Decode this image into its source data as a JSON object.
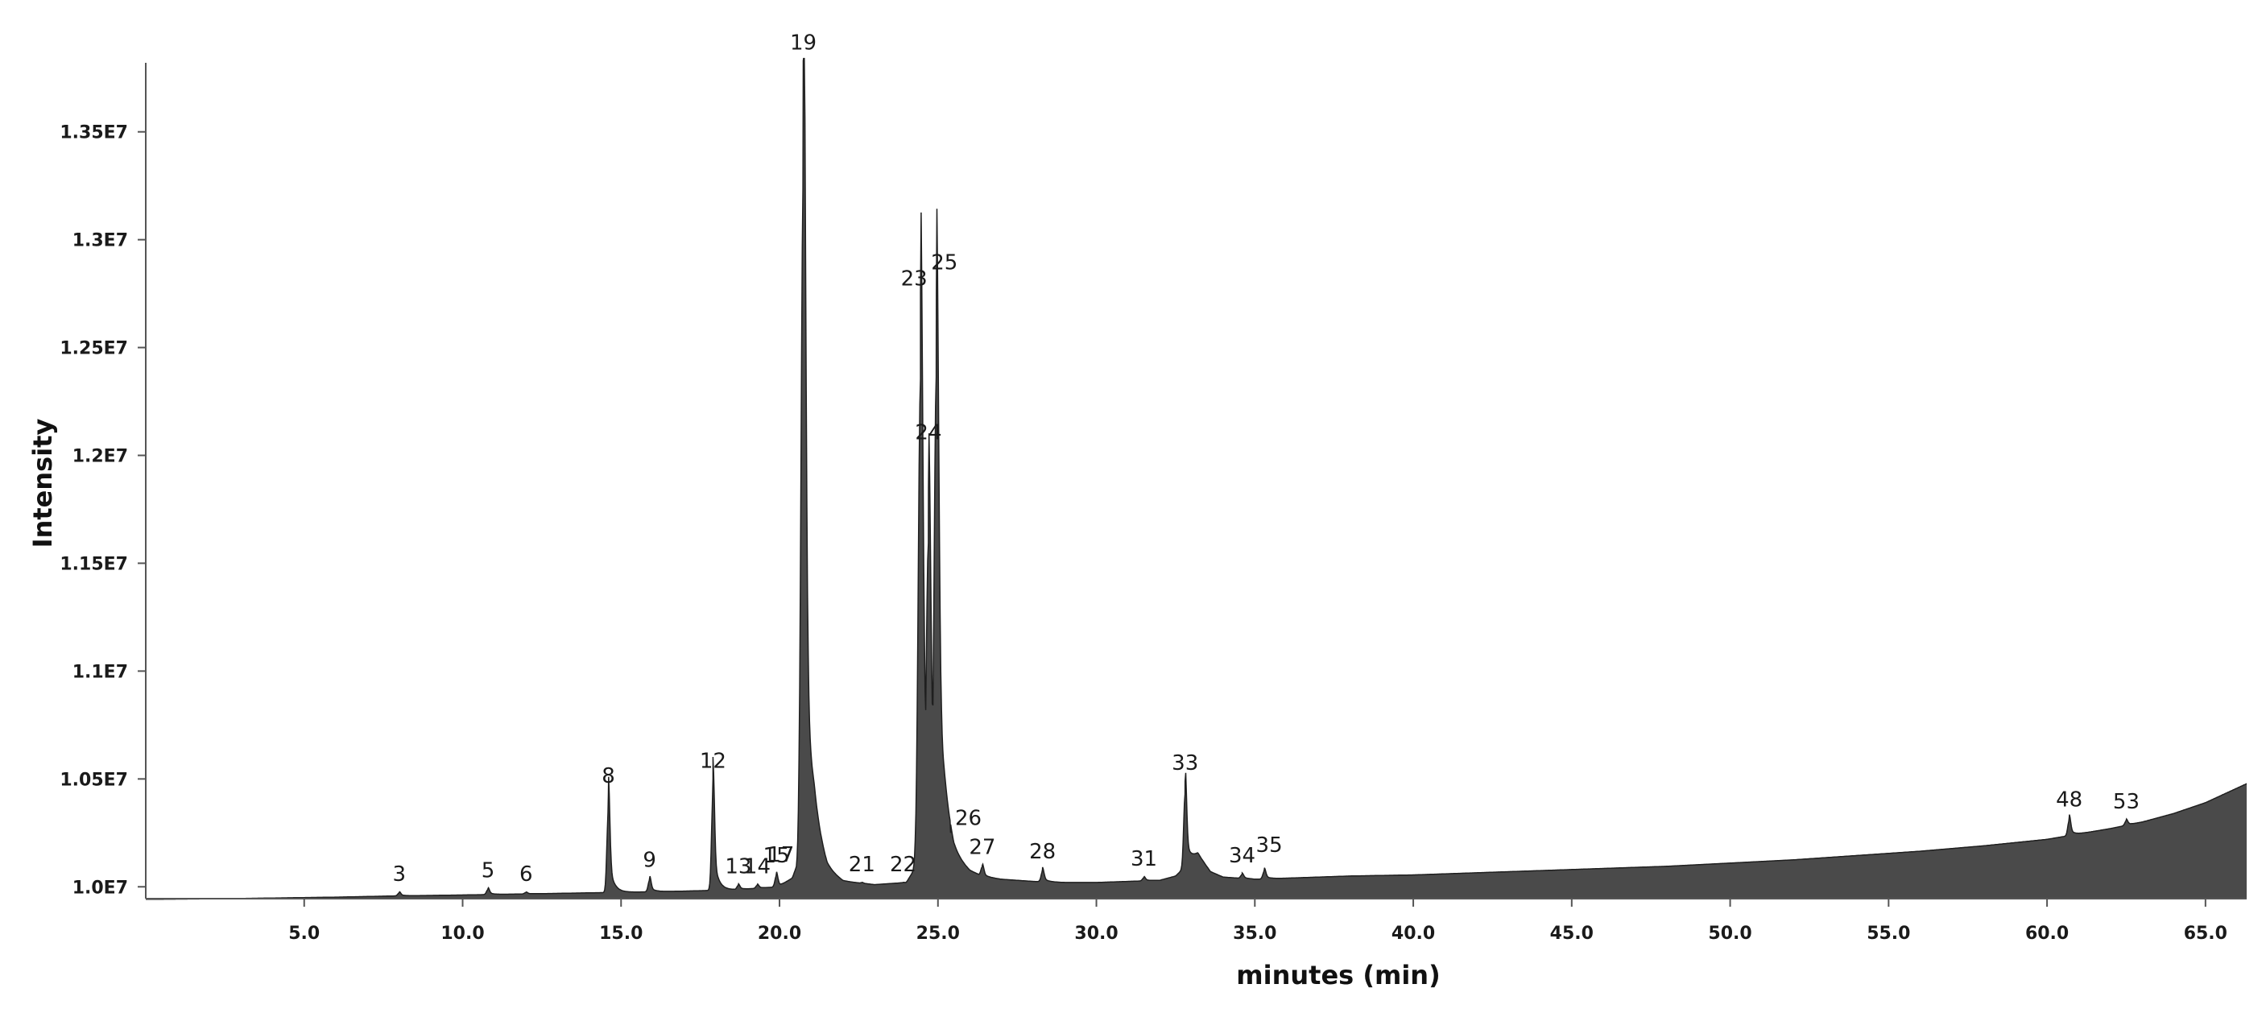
{
  "chart_data": {
    "type": "area",
    "title": "",
    "xlabel": "minutes (min)",
    "ylabel": "Intensity",
    "xlim": [
      0,
      66.3
    ],
    "ylim": [
      9945000,
      13820000
    ],
    "x_ticks": [
      5.0,
      10.0,
      15.0,
      20.0,
      25.0,
      30.0,
      35.0,
      40.0,
      45.0,
      50.0,
      55.0,
      60.0,
      65.0
    ],
    "x_tick_labels": [
      "5.0",
      "10.0",
      "15.0",
      "20.0",
      "25.0",
      "30.0",
      "35.0",
      "40.0",
      "45.0",
      "50.0",
      "55.0",
      "60.0",
      "65.0"
    ],
    "y_ticks": [
      10000000,
      10500000,
      11000000,
      11500000,
      12000000,
      12500000,
      13000000,
      13500000
    ],
    "y_tick_labels": [
      "1.0E7",
      "1.05E7",
      "1.1E7",
      "1.15E7",
      "1.2E7",
      "1.25E7",
      "1.3E7",
      "1.35E7"
    ],
    "grid": false,
    "fill_color": "#4a4a4a",
    "line_color": "#1f1f1f",
    "series": [
      {
        "x": [
          0.0,
          2.0,
          4.0,
          6.0,
          8.0,
          10.0,
          12.0,
          14.0,
          16.0,
          17.0,
          18.3,
          19.0,
          20.0,
          20.4,
          21.1,
          21.5,
          22.0,
          23.0,
          24.0,
          24.3,
          25.2,
          25.5,
          26.0,
          26.5,
          27.0,
          28.0,
          29.0,
          30.0,
          31.0,
          32.0,
          32.5,
          33.2,
          33.6,
          34.0,
          35.0,
          36.0,
          38.0,
          40.0,
          42.0,
          44.0,
          46.0,
          48.0,
          50.0,
          52.0,
          54.0,
          56.0,
          58.0,
          59.0,
          60.0,
          61.0,
          62.0,
          63.0,
          64.0,
          65.0,
          66.3
        ],
        "y": [
          9942000,
          9944000,
          9948000,
          9952000,
          9958000,
          9962000,
          9967000,
          9972000,
          9977000,
          9980000,
          9985000,
          9990000,
          10000000,
          10040000,
          10200000,
          10070000,
          10025000,
          10010000,
          10020000,
          10090000,
          10250000,
          10130000,
          10070000,
          10045000,
          10035000,
          10025000,
          10020000,
          10020000,
          10025000,
          10030000,
          10050000,
          10150000,
          10070000,
          10045000,
          10035000,
          10040000,
          10050000,
          10055000,
          10065000,
          10075000,
          10085000,
          10095000,
          10110000,
          10125000,
          10145000,
          10165000,
          10190000,
          10205000,
          10220000,
          10245000,
          10270000,
          10300000,
          10340000,
          10390000,
          10478000
        ]
      }
    ],
    "peaks": [
      {
        "label": "3",
        "x": 8.0,
        "y": 9975000
      },
      {
        "label": "5",
        "x": 10.8,
        "y": 9992000
      },
      {
        "label": "6",
        "x": 12.0,
        "y": 9975000
      },
      {
        "label": "8",
        "x": 14.6,
        "y": 10430000
      },
      {
        "label": "9",
        "x": 15.9,
        "y": 10040000
      },
      {
        "label": "12",
        "x": 17.9,
        "y": 10500000
      },
      {
        "label": "13",
        "x": 18.7,
        "y": 10010000
      },
      {
        "label": "14",
        "x": 19.3,
        "y": 10010000
      },
      {
        "label": "15",
        "x": 19.9,
        "y": 10060000
      },
      {
        "label": "17",
        "x": 20.5,
        "y": 10080000
      },
      {
        "label": "19",
        "x": 20.75,
        "y": 13830000
      },
      {
        "label": "21",
        "x": 22.6,
        "y": 10020000
      },
      {
        "label": "22",
        "x": 23.9,
        "y": 10020000
      },
      {
        "label": "23",
        "x": 24.45,
        "y": 12750000
      },
      {
        "label": "24",
        "x": 24.7,
        "y": 11850000
      },
      {
        "label": "25",
        "x": 24.95,
        "y": 12750000
      },
      {
        "label": "26",
        "x": 25.4,
        "y": 10250000
      },
      {
        "label": "27",
        "x": 26.4,
        "y": 10100000
      },
      {
        "label": "28",
        "x": 28.3,
        "y": 10080000
      },
      {
        "label": "31",
        "x": 31.5,
        "y": 10045000
      },
      {
        "label": "33",
        "x": 32.8,
        "y": 10490000
      },
      {
        "label": "34",
        "x": 34.6,
        "y": 10060000
      },
      {
        "label": "35",
        "x": 35.3,
        "y": 10080000
      },
      {
        "label": "48",
        "x": 60.7,
        "y": 10320000
      },
      {
        "label": "53",
        "x": 62.5,
        "y": 10310000
      }
    ]
  }
}
